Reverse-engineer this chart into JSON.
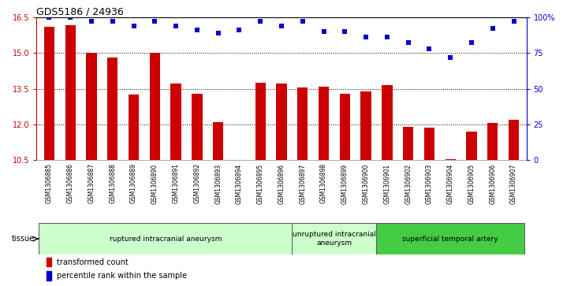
{
  "title": "GDS5186 / 24936",
  "samples": [
    "GSM1306885",
    "GSM1306886",
    "GSM1306887",
    "GSM1306888",
    "GSM1306889",
    "GSM1306890",
    "GSM1306891",
    "GSM1306892",
    "GSM1306893",
    "GSM1306894",
    "GSM1306895",
    "GSM1306896",
    "GSM1306897",
    "GSM1306898",
    "GSM1306899",
    "GSM1306900",
    "GSM1306901",
    "GSM1306902",
    "GSM1306903",
    "GSM1306904",
    "GSM1306905",
    "GSM1306906",
    "GSM1306907"
  ],
  "bar_values": [
    16.1,
    16.15,
    15.0,
    14.8,
    13.25,
    15.0,
    13.7,
    13.3,
    12.1,
    10.5,
    13.75,
    13.7,
    13.55,
    13.6,
    13.3,
    13.4,
    13.65,
    11.9,
    11.85,
    10.55,
    11.7,
    12.05,
    12.2
  ],
  "percentile_values": [
    100,
    100,
    97,
    97,
    94,
    97,
    94,
    91,
    89,
    91,
    97,
    94,
    97,
    90,
    90,
    86,
    86,
    82,
    78,
    72,
    82,
    92,
    97
  ],
  "bar_color": "#cc0000",
  "dot_color": "#0000cc",
  "ylim_left": [
    10.5,
    16.5
  ],
  "ylim_right": [
    0,
    100
  ],
  "yticks_left": [
    10.5,
    12.0,
    13.5,
    15.0,
    16.5
  ],
  "yticks_right": [
    0,
    25,
    50,
    75,
    100
  ],
  "ytick_labels_right": [
    "0",
    "25",
    "50",
    "75",
    "100%"
  ],
  "groups": [
    {
      "label": "ruptured intracranial aneurysm",
      "start": 0,
      "end": 12,
      "color": "#ccffcc"
    },
    {
      "label": "unruptured intracranial\naneurysm",
      "start": 12,
      "end": 16,
      "color": "#ccffcc"
    },
    {
      "label": "superficial temporal artery",
      "start": 16,
      "end": 23,
      "color": "#44cc44"
    }
  ],
  "tissue_label": "tissue",
  "legend_bar_label": "transformed count",
  "legend_dot_label": "percentile rank within the sample",
  "xticklabel_bg": "#d0d0d0",
  "plot_bg_color": "#ffffff",
  "grid_color": "#000000"
}
